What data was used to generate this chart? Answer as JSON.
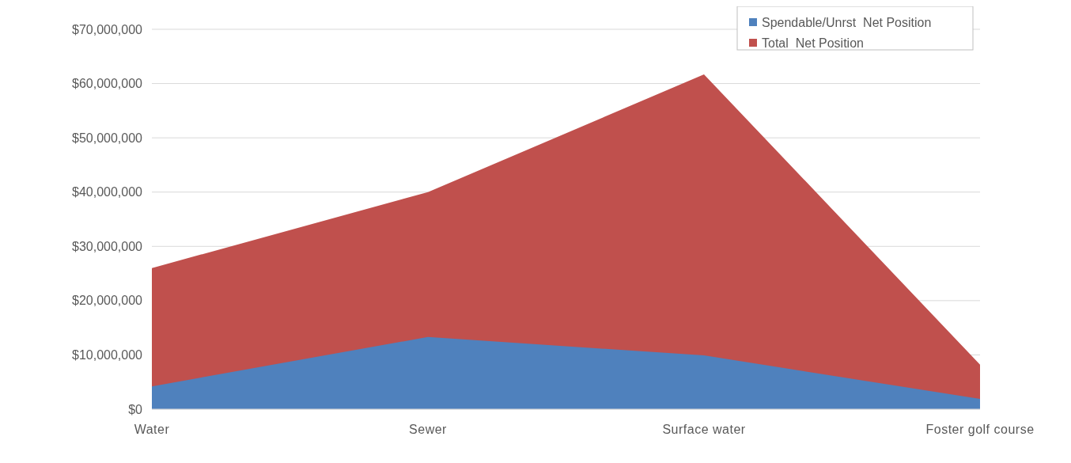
{
  "chart_data": {
    "type": "area",
    "categories": [
      "Water",
      "Sewer",
      "Surface water",
      "Foster golf course"
    ],
    "series": [
      {
        "name": "Spendable/Unrst  Net Position",
        "color": "#4f81bd",
        "values": [
          4200000,
          13300000,
          9900000,
          1900000
        ]
      },
      {
        "name": "Total  Net Position",
        "color": "#c0504d",
        "values": [
          26000000,
          40000000,
          61700000,
          8200000
        ]
      }
    ],
    "ylim": [
      0,
      70000000
    ],
    "yticks": [
      {
        "value": 0,
        "label": "$0"
      },
      {
        "value": 10000000,
        "label": "$10,000,000"
      },
      {
        "value": 20000000,
        "label": "$20,000,000"
      },
      {
        "value": 30000000,
        "label": "$30,000,000"
      },
      {
        "value": 40000000,
        "label": "$40,000,000"
      },
      {
        "value": 50000000,
        "label": "$50,000,000"
      },
      {
        "value": 60000000,
        "label": "$60,000,000"
      },
      {
        "value": 70000000,
        "label": "$70,000,000"
      }
    ],
    "grid": "y",
    "legend": "top right"
  }
}
